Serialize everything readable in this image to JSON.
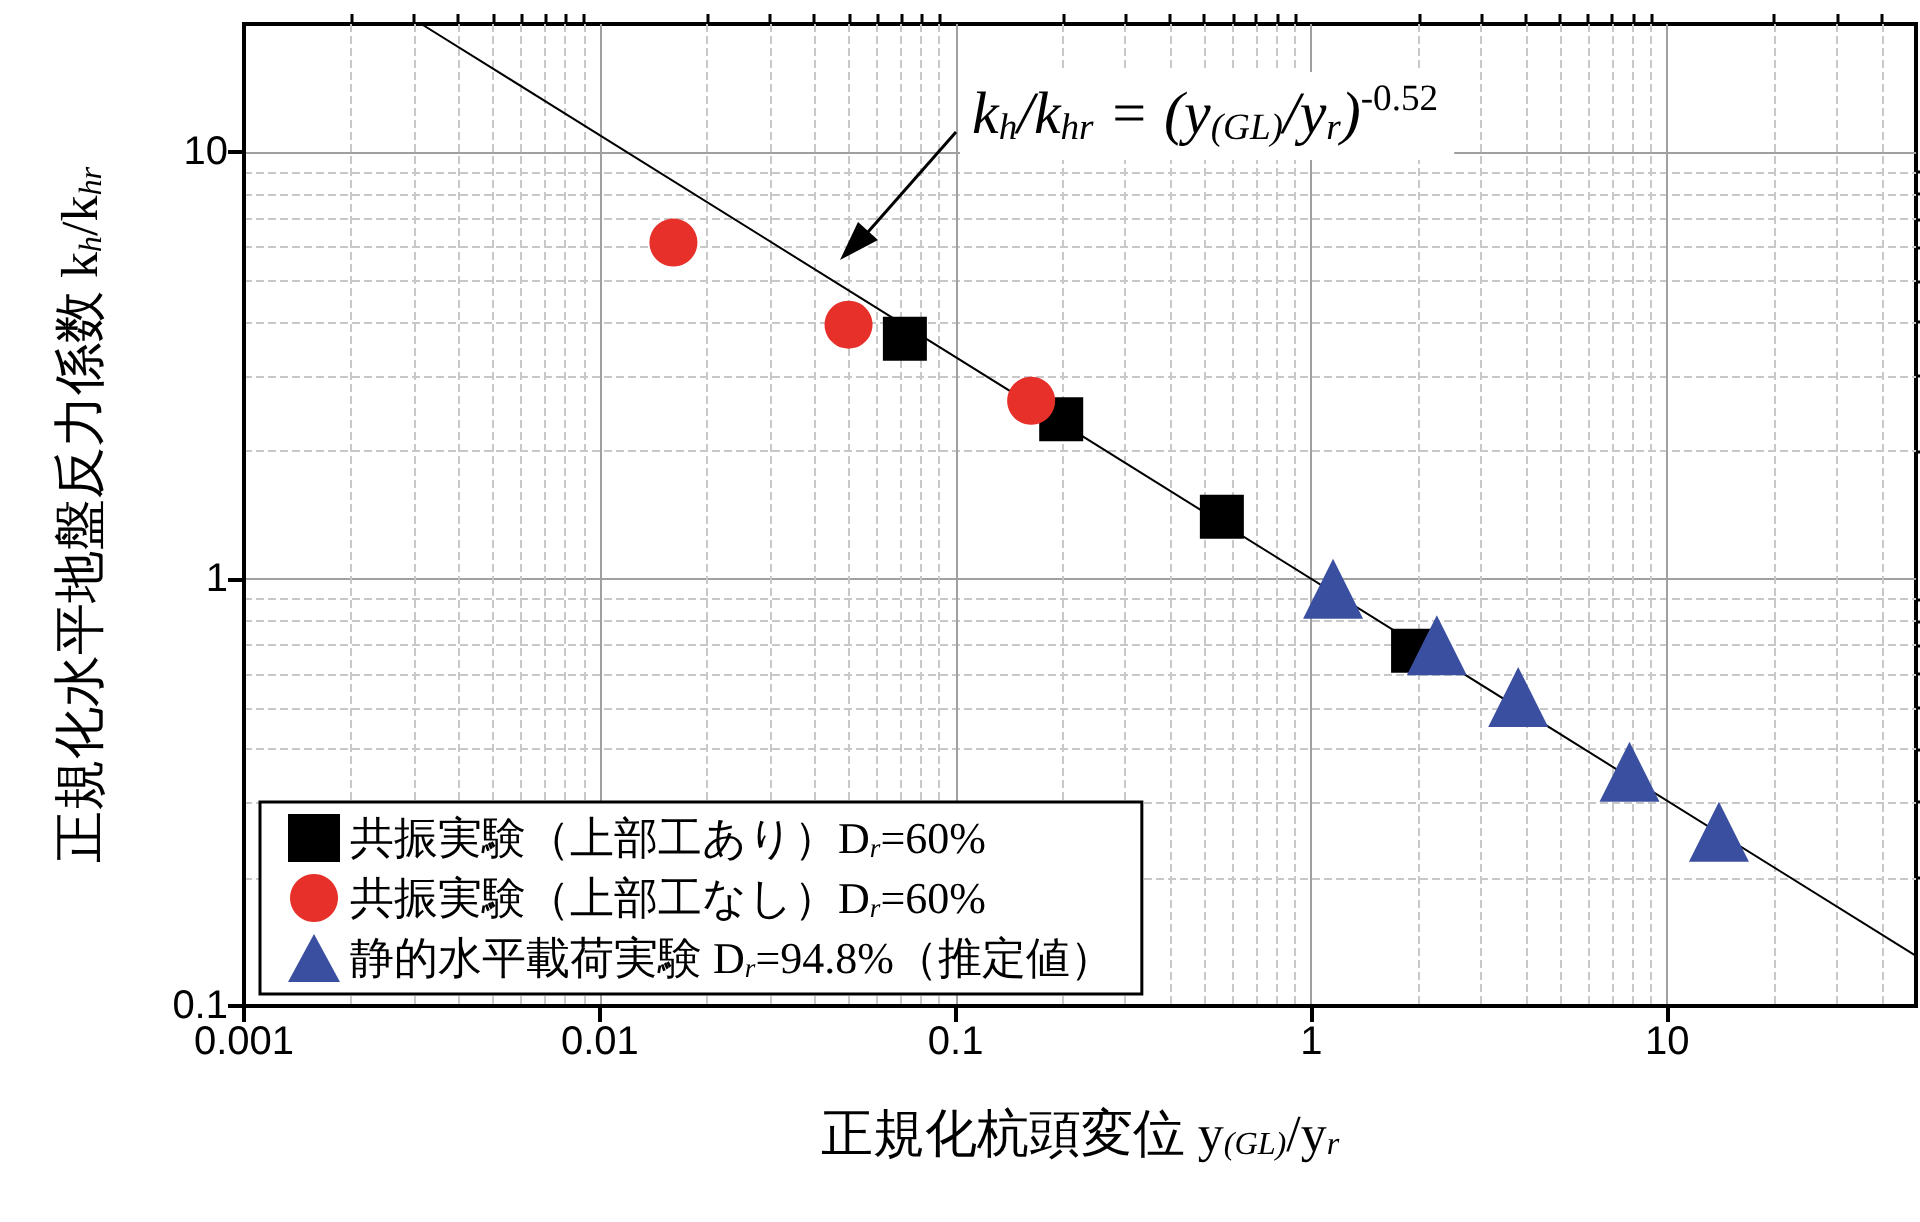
{
  "chart_data": {
    "type": "scatter",
    "xlabel": "正規化杭頭変位 y$_{(GL)}$/y$_{r}$",
    "ylabel": "正規化水平地盤反力係数 k$_{h}$/k$_{hr}$",
    "log": "xy",
    "grid": true,
    "legend": "bottom left",
    "xlim": [
      0.001,
      50
    ],
    "xticks": [
      0.001,
      0.01,
      0.1,
      1,
      10
    ],
    "ylim": [
      0.1,
      20
    ],
    "yticks": [
      0.1,
      1,
      10
    ],
    "annotations": [
      "k$_{h}$/k$_{hr}$ = (y$_{(GL)}$/y$_{r}$)$^{-0.52}$"
    ],
    "series": [
      {
        "name": "共振実験（上部工あり）D$_{r}$=60%",
        "color": "#000000",
        "marker": "square",
        "x": [
          0.072,
          0.198,
          0.56,
          1.93
        ],
        "values": [
          3.66,
          2.37,
          1.4,
          0.68
        ]
      },
      {
        "name": "共振実験（上部工なし）D$_{r}$=60%",
        "color": "#e8302a",
        "marker": "circle",
        "x": [
          0.0161,
          0.05,
          0.163
        ],
        "values": [
          6.15,
          3.95,
          2.62
        ]
      },
      {
        "name": "静的水平載荷実験 D$_{r}$=94.8%（推定値）",
        "color": "#3a4fa0",
        "marker": "triangle",
        "x": [
          1.15,
          2.25,
          3.81,
          7.83,
          13.97
        ],
        "values": [
          0.95,
          0.7,
          0.53,
          0.354,
          0.256
        ]
      },
      {
        "type": "line",
        "color": "#000000",
        "marker": "none",
        "x": [
          0.00315,
          50
        ],
        "values": [
          20,
          0.131
        ]
      }
    ]
  }
}
